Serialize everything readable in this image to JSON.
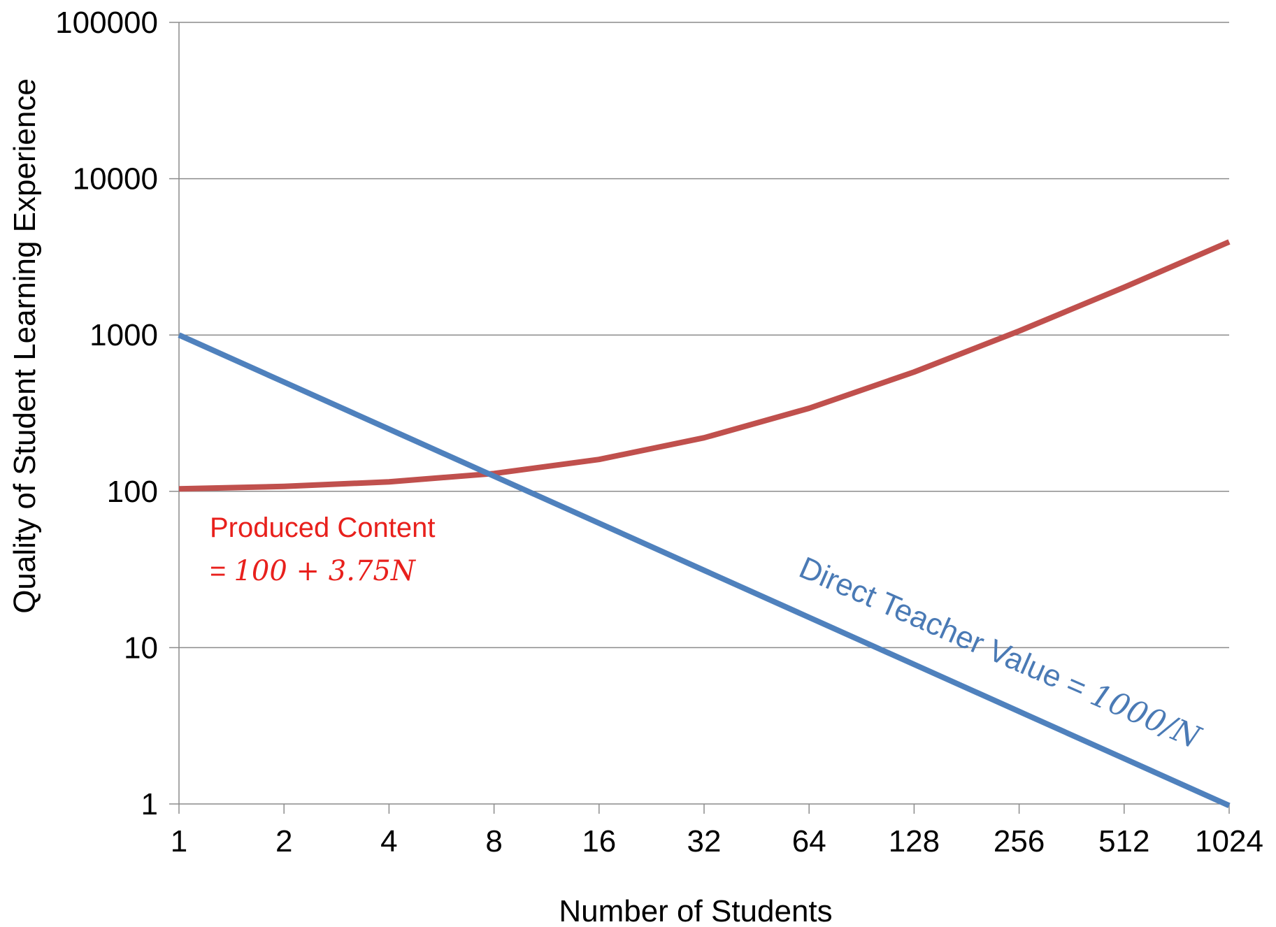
{
  "chart_data": {
    "type": "line",
    "xlabel": "Number of Students",
    "ylabel": "Quality of Student Learning Experience",
    "x_scale": "log2",
    "y_scale": "log10",
    "x": [
      1,
      2,
      4,
      8,
      16,
      32,
      64,
      128,
      256,
      512,
      1024
    ],
    "x_tick_labels": [
      "1",
      "2",
      "4",
      "8",
      "16",
      "32",
      "64",
      "128",
      "256",
      "512",
      "1024"
    ],
    "y_ticks": [
      1,
      10,
      100,
      1000,
      10000,
      100000
    ],
    "y_tick_labels": [
      "1",
      "10",
      "100",
      "1000",
      "10000",
      "100000"
    ],
    "xlim": [
      1,
      1024
    ],
    "ylim": [
      1,
      100000
    ],
    "grid": "horizontal",
    "legend": "none",
    "series": [
      {
        "color": "#c0504d",
        "values": [
          103.75,
          107.5,
          115,
          130,
          160,
          220,
          340,
          580,
          1060,
          2020,
          3940
        ]
      },
      {
        "color": "#4f81bd",
        "values": [
          1000,
          500,
          250,
          125,
          62.5,
          31.25,
          15.625,
          7.8125,
          3.90625,
          1.953125,
          0.9765625
        ]
      }
    ],
    "annotations": {
      "red_label": "Produced Content",
      "red_formula_prefix": "= ",
      "red_formula": "100 + 3.75N",
      "blue_label": "Direct Teacher Value = ",
      "blue_formula": "1000/N"
    }
  }
}
